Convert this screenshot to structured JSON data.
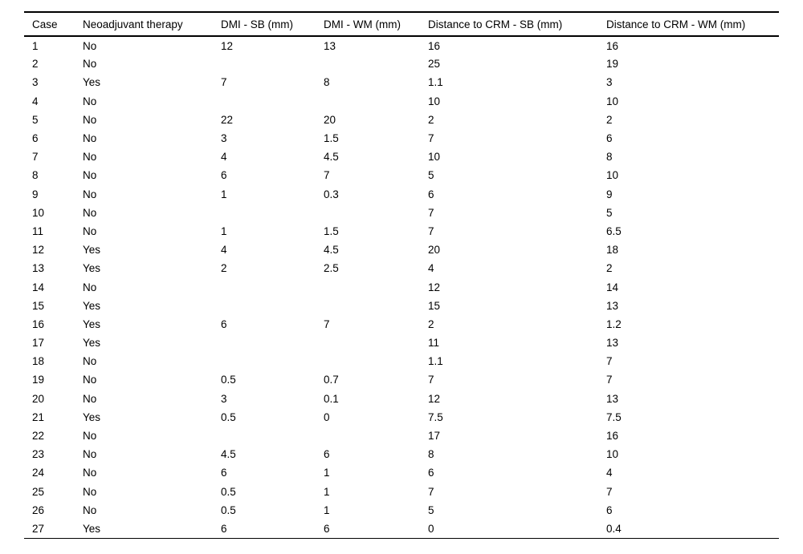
{
  "table": {
    "columns": [
      "Case",
      "Neoadjuvant therapy",
      "DMI - SB (mm)",
      "DMI - WM (mm)",
      "Distance to CRM - SB (mm)",
      "Distance to CRM - WM (mm)"
    ],
    "rows": [
      [
        "1",
        "No",
        "12",
        "13",
        "16",
        "16"
      ],
      [
        "2",
        "No",
        "",
        "",
        "25",
        "19"
      ],
      [
        "3",
        "Yes",
        "7",
        "8",
        "1.1",
        "3"
      ],
      [
        "4",
        "No",
        "",
        "",
        "10",
        "10"
      ],
      [
        "5",
        "No",
        "22",
        "20",
        "2",
        "2"
      ],
      [
        "6",
        "No",
        "3",
        "1.5",
        "7",
        "6"
      ],
      [
        "7",
        "No",
        "4",
        "4.5",
        "10",
        "8"
      ],
      [
        "8",
        "No",
        "6",
        "7",
        "5",
        "10"
      ],
      [
        "9",
        "No",
        "1",
        "0.3",
        "6",
        "9"
      ],
      [
        "10",
        "No",
        "",
        "",
        "7",
        "5"
      ],
      [
        "11",
        "No",
        "1",
        "1.5",
        "7",
        "6.5"
      ],
      [
        "12",
        "Yes",
        "4",
        "4.5",
        "20",
        "18"
      ],
      [
        "13",
        "Yes",
        "2",
        "2.5",
        "4",
        "2"
      ],
      [
        "14",
        "No",
        "",
        "",
        "12",
        "14"
      ],
      [
        "15",
        "Yes",
        "",
        "",
        "15",
        "13"
      ],
      [
        "16",
        "Yes",
        "6",
        "7",
        "2",
        "1.2"
      ],
      [
        "17",
        "Yes",
        "",
        "",
        "11",
        "13"
      ],
      [
        "18",
        "No",
        "",
        "",
        "1.1",
        "7"
      ],
      [
        "19",
        "No",
        "0.5",
        "0.7",
        "7",
        "7"
      ],
      [
        "20",
        "No",
        "3",
        "0.1",
        "12",
        "13"
      ],
      [
        "21",
        "Yes",
        "0.5",
        "0",
        "7.5",
        "7.5"
      ],
      [
        "22",
        "No",
        "",
        "",
        "17",
        "16"
      ],
      [
        "23",
        "No",
        "4.5",
        "6",
        "8",
        "10"
      ],
      [
        "24",
        "No",
        "6",
        "1",
        "6",
        "4"
      ],
      [
        "25",
        "No",
        "0.5",
        "1",
        "7",
        "7"
      ],
      [
        "26",
        "No",
        "0.5",
        "1",
        "5",
        "6"
      ],
      [
        "27",
        "Yes",
        "6",
        "6",
        "0",
        "0.4"
      ]
    ]
  }
}
